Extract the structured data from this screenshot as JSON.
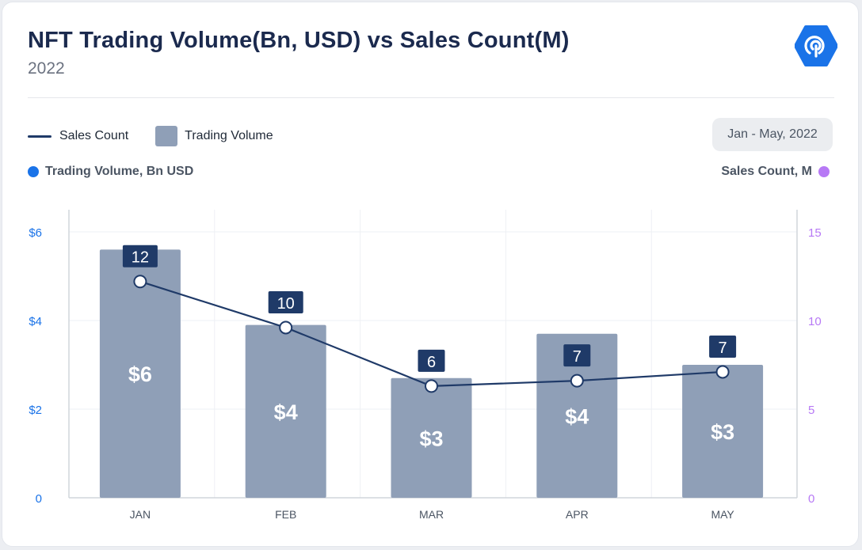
{
  "header": {
    "title": "NFT Trading Volume(Bn, USD) vs Sales Count(M)",
    "subtitle": "2022",
    "date_range": "Jan - May, 2022"
  },
  "legend": {
    "line_label": "Sales Count",
    "bar_label": "Trading Volume"
  },
  "axis_titles": {
    "left": "Trading Volume, Bn USD",
    "right": "Sales Count, M"
  },
  "colors": {
    "bar": "#8f9fb7",
    "line": "#1f3a68",
    "label_box": "#1f3a68",
    "left_axis": "#1a73e8",
    "right_axis": "#b779f5",
    "logo": "#1a73e8"
  },
  "chart_data": {
    "type": "bar+line",
    "categories": [
      "JAN",
      "FEB",
      "MAR",
      "APR",
      "MAY"
    ],
    "series": [
      {
        "name": "Trading Volume",
        "type": "bar",
        "axis": "left",
        "values": [
          5.6,
          3.9,
          2.7,
          3.7,
          3.0
        ],
        "labels": [
          "$6",
          "$4",
          "$3",
          "$4",
          "$3"
        ]
      },
      {
        "name": "Sales Count",
        "type": "line",
        "axis": "right",
        "values": [
          12.2,
          9.6,
          6.3,
          6.6,
          7.1
        ],
        "labels": [
          "12",
          "10",
          "6",
          "7",
          "7"
        ]
      }
    ],
    "y_left": {
      "range": [
        0,
        6.5
      ],
      "ticks": [
        0,
        2,
        4,
        6
      ],
      "tick_labels": [
        "0",
        "$2",
        "$4",
        "$6"
      ]
    },
    "y_right": {
      "range": [
        0,
        16.25
      ],
      "ticks": [
        0,
        5,
        10,
        15
      ],
      "tick_labels": [
        "0",
        "5",
        "10",
        "15"
      ]
    },
    "grid": true
  }
}
